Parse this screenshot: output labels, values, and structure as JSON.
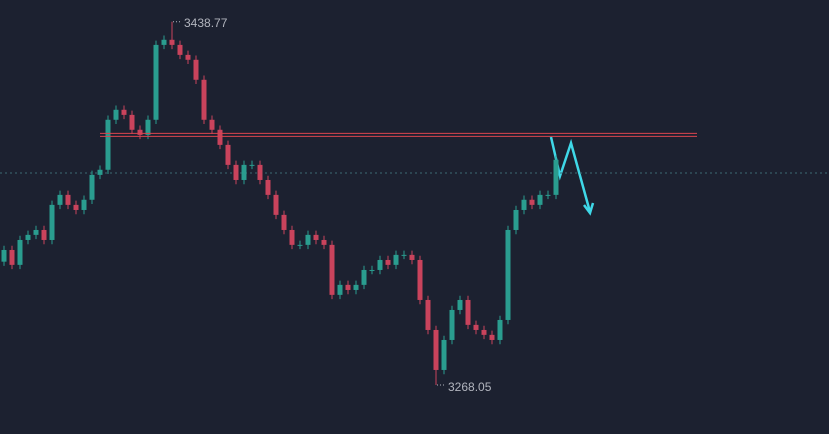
{
  "chart_data": {
    "type": "candlestick",
    "open": [
      3326.0,
      3331.5,
      3324.5,
      3336.2,
      3338.6,
      3340.9,
      3336.2,
      3352.7,
      3357.4,
      3352.7,
      3350.3,
      3355.1,
      3366.8,
      3369.2,
      3392.7,
      3397.4,
      3395.0,
      3388.0,
      3385.6,
      3392.7,
      3427.9,
      3430.3,
      3427.9,
      3423.2,
      3420.9,
      3411.5,
      3392.7,
      3388.0,
      3380.9,
      3371.5,
      3364.4,
      3371.5,
      3371.5,
      3364.4,
      3357.4,
      3348.0,
      3340.9,
      3333.9,
      3333.9,
      3338.6,
      3336.2,
      3333.9,
      3310.4,
      3315.1,
      3312.7,
      3315.1,
      3322.1,
      3322.1,
      3326.8,
      3324.5,
      3329.2,
      3329.2,
      3326.8,
      3308.0,
      3293.9,
      3275.1,
      3289.2,
      3303.3,
      3308.0,
      3296.3,
      3293.9,
      3291.6,
      3289.2,
      3298.6,
      3340.9,
      3350.3,
      3355.1,
      3352.7,
      3357.4,
      3357.4
    ],
    "high": [
      3333.5,
      3333.5,
      3338.2,
      3340.6,
      3342.9,
      3342.9,
      3354.7,
      3359.4,
      3359.4,
      3354.7,
      3357.1,
      3368.8,
      3371.2,
      3394.7,
      3399.4,
      3399.4,
      3397.0,
      3390.0,
      3394.7,
      3429.9,
      3432.3,
      3438.77,
      3429.9,
      3425.2,
      3422.9,
      3413.5,
      3394.7,
      3390.0,
      3382.9,
      3373.5,
      3373.5,
      3373.5,
      3373.5,
      3366.4,
      3359.4,
      3350.0,
      3342.9,
      3335.9,
      3340.6,
      3340.6,
      3338.2,
      3335.9,
      3317.1,
      3317.1,
      3317.1,
      3324.1,
      3324.1,
      3328.8,
      3328.8,
      3331.2,
      3331.2,
      3331.2,
      3328.8,
      3310.0,
      3295.9,
      3291.2,
      3305.3,
      3310.0,
      3310.0,
      3298.3,
      3295.9,
      3293.6,
      3300.6,
      3342.9,
      3352.3,
      3357.1,
      3357.1,
      3359.4,
      3359.4,
      3375.9
    ],
    "low": [
      3324.0,
      3322.5,
      3322.5,
      3334.2,
      3336.6,
      3334.2,
      3334.2,
      3350.7,
      3350.7,
      3348.3,
      3348.3,
      3353.1,
      3364.8,
      3367.2,
      3390.7,
      3393.0,
      3386.0,
      3383.6,
      3383.6,
      3390.7,
      3425.9,
      3425.9,
      3421.2,
      3418.9,
      3409.5,
      3390.7,
      3386.0,
      3378.9,
      3369.5,
      3362.4,
      3362.4,
      3369.5,
      3362.4,
      3355.4,
      3346.0,
      3338.9,
      3331.9,
      3331.9,
      3331.9,
      3334.2,
      3331.9,
      3308.4,
      3308.4,
      3310.7,
      3310.7,
      3313.1,
      3320.1,
      3320.1,
      3322.5,
      3322.5,
      3327.2,
      3324.8,
      3306.0,
      3291.9,
      3268.05,
      3273.1,
      3287.2,
      3301.3,
      3294.3,
      3291.9,
      3289.6,
      3287.2,
      3287.2,
      3296.6,
      3338.9,
      3348.3,
      3350.7,
      3350.7,
      3355.4,
      3355.4
    ],
    "close": [
      3331.5,
      3324.5,
      3336.2,
      3338.6,
      3340.9,
      3336.2,
      3352.7,
      3357.4,
      3352.7,
      3350.3,
      3355.1,
      3366.8,
      3369.2,
      3392.7,
      3397.4,
      3395.0,
      3388.0,
      3385.6,
      3392.7,
      3427.9,
      3430.3,
      3427.9,
      3423.2,
      3420.9,
      3411.5,
      3392.7,
      3388.0,
      3380.9,
      3371.5,
      3364.4,
      3371.5,
      3371.5,
      3364.4,
      3357.4,
      3348.0,
      3340.9,
      3333.9,
      3333.9,
      3338.6,
      3336.2,
      3333.9,
      3310.4,
      3315.1,
      3312.7,
      3315.1,
      3322.1,
      3322.1,
      3326.8,
      3324.5,
      3329.2,
      3329.2,
      3326.8,
      3308.0,
      3293.9,
      3275.1,
      3289.2,
      3303.3,
      3308.0,
      3296.3,
      3293.9,
      3291.6,
      3289.2,
      3298.6,
      3340.9,
      3350.3,
      3355.1,
      3352.7,
      3357.4,
      3357.4,
      3373.9
    ],
    "up_color": "#2a9d8f",
    "down_color": "#c9435c",
    "ylim": [
      3245,
      3449
    ],
    "level": 3385.6,
    "level_color": "#d9444e",
    "last_price": 3367.7,
    "annotations": [
      {
        "value": 3438.77,
        "label": "3438.77"
      },
      {
        "value": 3268.05,
        "label": "3268.05"
      }
    ]
  }
}
